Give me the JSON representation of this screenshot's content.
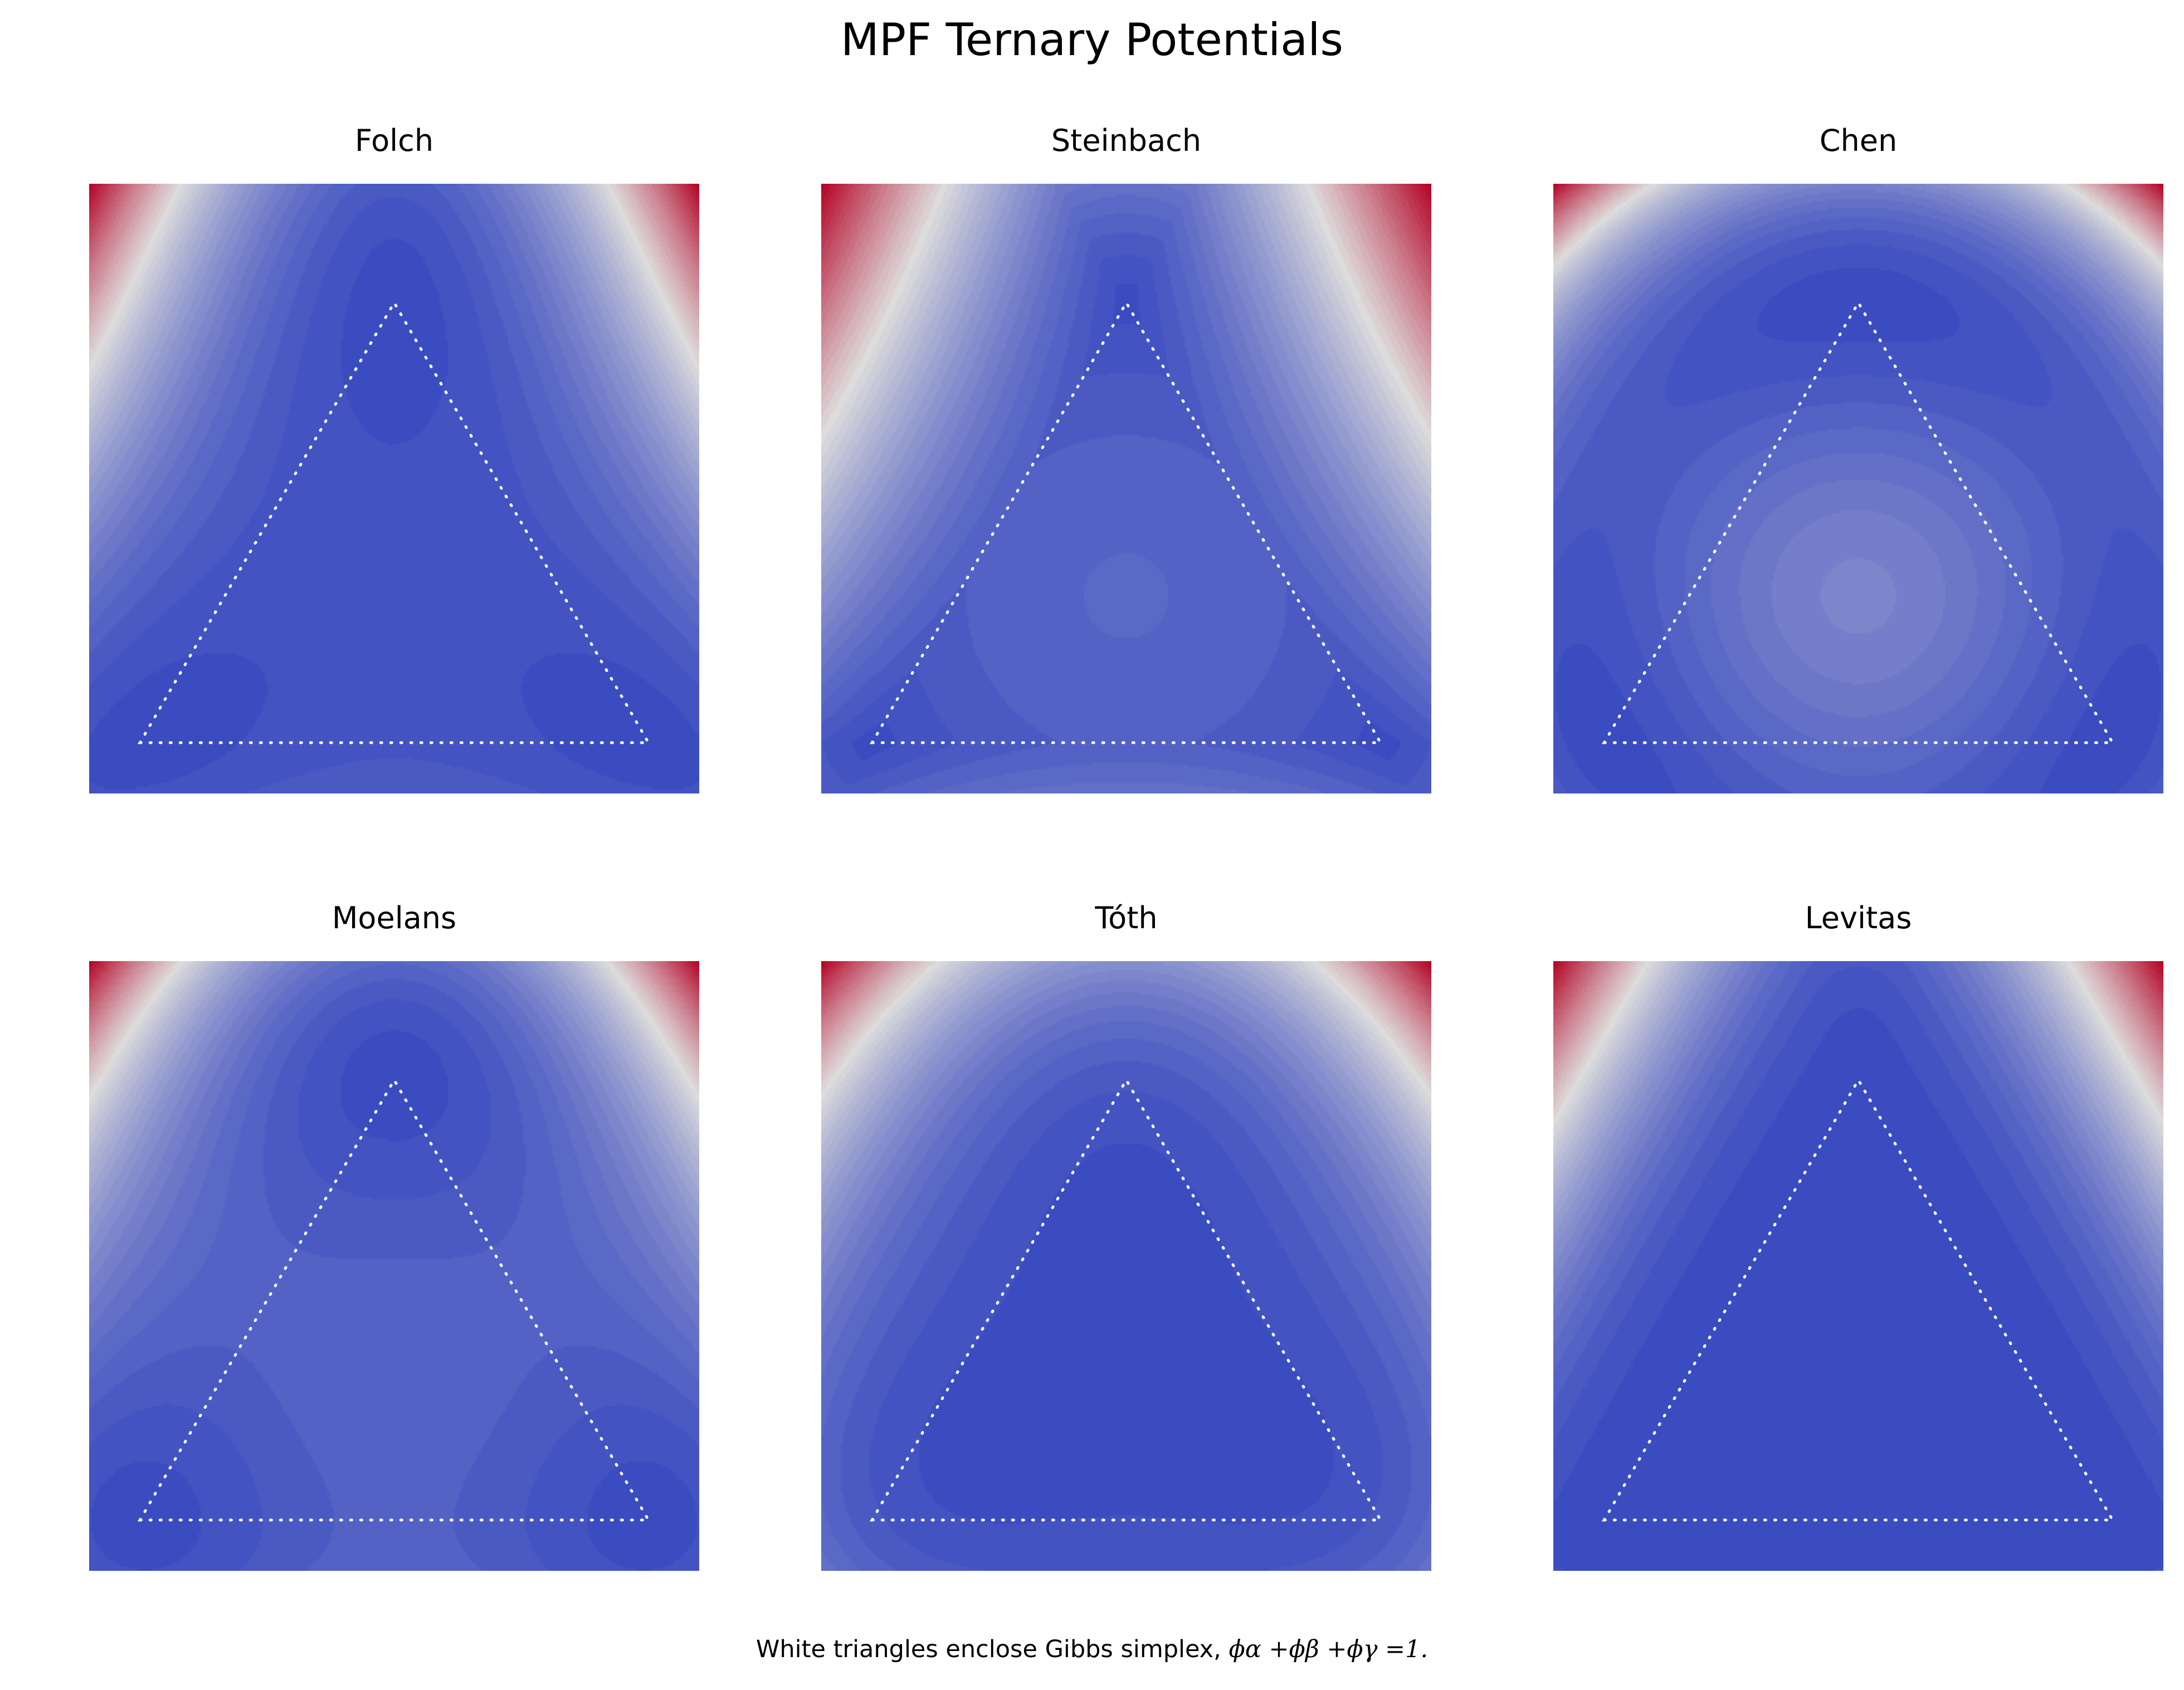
{
  "title": "MPF Ternary Potentials",
  "caption": {
    "text": "White triangles enclose Gibbs simplex,",
    "formula": "ϕα +ϕβ +ϕγ =1."
  },
  "colormap": {
    "name": "coolwarm",
    "low": "#3b4cc0",
    "mid": "#dddcdc",
    "high": "#b40426"
  },
  "chart_data": [
    {
      "type": "heatmap",
      "title": "Folch",
      "xlim": [
        -0.1,
        1.1
      ],
      "ylim": [
        -0.1,
        1.1
      ],
      "simplex_vertices": [
        [
          0,
          0
        ],
        [
          1,
          0
        ],
        [
          0.5,
          0.866
        ]
      ],
      "features": "minima at the three corners, shallow plateau at centre, high values at top-left and top-right"
    },
    {
      "type": "heatmap",
      "title": "Steinbach",
      "xlim": [
        -0.1,
        1.1
      ],
      "ylim": [
        -0.1,
        1.1
      ],
      "simplex_vertices": [
        [
          0,
          0
        ],
        [
          1,
          0
        ],
        [
          0.5,
          0.866
        ]
      ],
      "features": "minima along triangle edges, hump at centre, highest values at top-left and top-right"
    },
    {
      "type": "heatmap",
      "title": "Chen",
      "xlim": [
        -0.1,
        1.1
      ],
      "ylim": [
        -0.1,
        1.1
      ],
      "simplex_vertices": [
        [
          0,
          0
        ],
        [
          1,
          0
        ],
        [
          0.5,
          0.866
        ]
      ],
      "features": "minima at the three corners, weak central bump"
    },
    {
      "type": "heatmap",
      "title": "Moelans",
      "xlim": [
        -0.1,
        1.1
      ],
      "ylim": [
        -0.1,
        1.1
      ],
      "simplex_vertices": [
        [
          0,
          0
        ],
        [
          1,
          0
        ],
        [
          0.5,
          0.866
        ]
      ],
      "features": "corner minima with ridges along the edge midpoints"
    },
    {
      "type": "heatmap",
      "title": "Tóth",
      "xlim": [
        -0.1,
        1.1
      ],
      "ylim": [
        -0.1,
        1.1
      ],
      "simplex_vertices": [
        [
          0,
          0
        ],
        [
          1,
          0
        ],
        [
          0.5,
          0.866
        ]
      ],
      "features": "corner minima with ridges along the edge midpoints"
    },
    {
      "type": "heatmap",
      "title": "Levitas",
      "xlim": [
        -0.1,
        1.1
      ],
      "ylim": [
        -0.1,
        1.1
      ],
      "simplex_vertices": [
        [
          0,
          0
        ],
        [
          1,
          0
        ],
        [
          0.5,
          0.866
        ]
      ],
      "features": "nearly flat inside the simplex, high only at far top corners"
    }
  ]
}
